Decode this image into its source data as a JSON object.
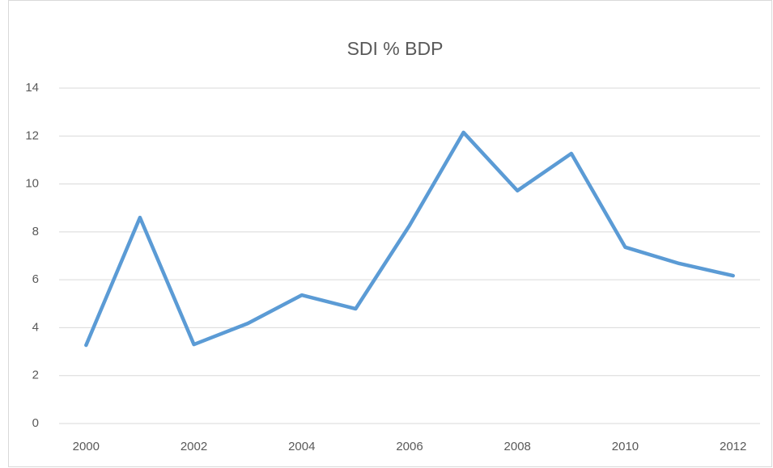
{
  "chart_data": {
    "type": "line",
    "title": "SDI % BDP",
    "x": [
      2000,
      2001,
      2002,
      2003,
      2004,
      2005,
      2006,
      2007,
      2008,
      2009,
      2010,
      2011,
      2012
    ],
    "series": [
      {
        "name": "SDI % BDP",
        "color": "#5b9bd5",
        "values": [
          3.27,
          8.6,
          3.3,
          4.18,
          5.36,
          4.79,
          8.27,
          12.15,
          9.72,
          11.27,
          7.36,
          6.68,
          6.17
        ]
      }
    ],
    "xlim": [
      1999.5,
      2012.5
    ],
    "xticks": [
      2000,
      2002,
      2004,
      2006,
      2008,
      2010,
      2012
    ],
    "ylim": [
      0,
      14
    ],
    "yticks": [
      0,
      2,
      4,
      6,
      8,
      10,
      12,
      14
    ],
    "grid": true
  }
}
